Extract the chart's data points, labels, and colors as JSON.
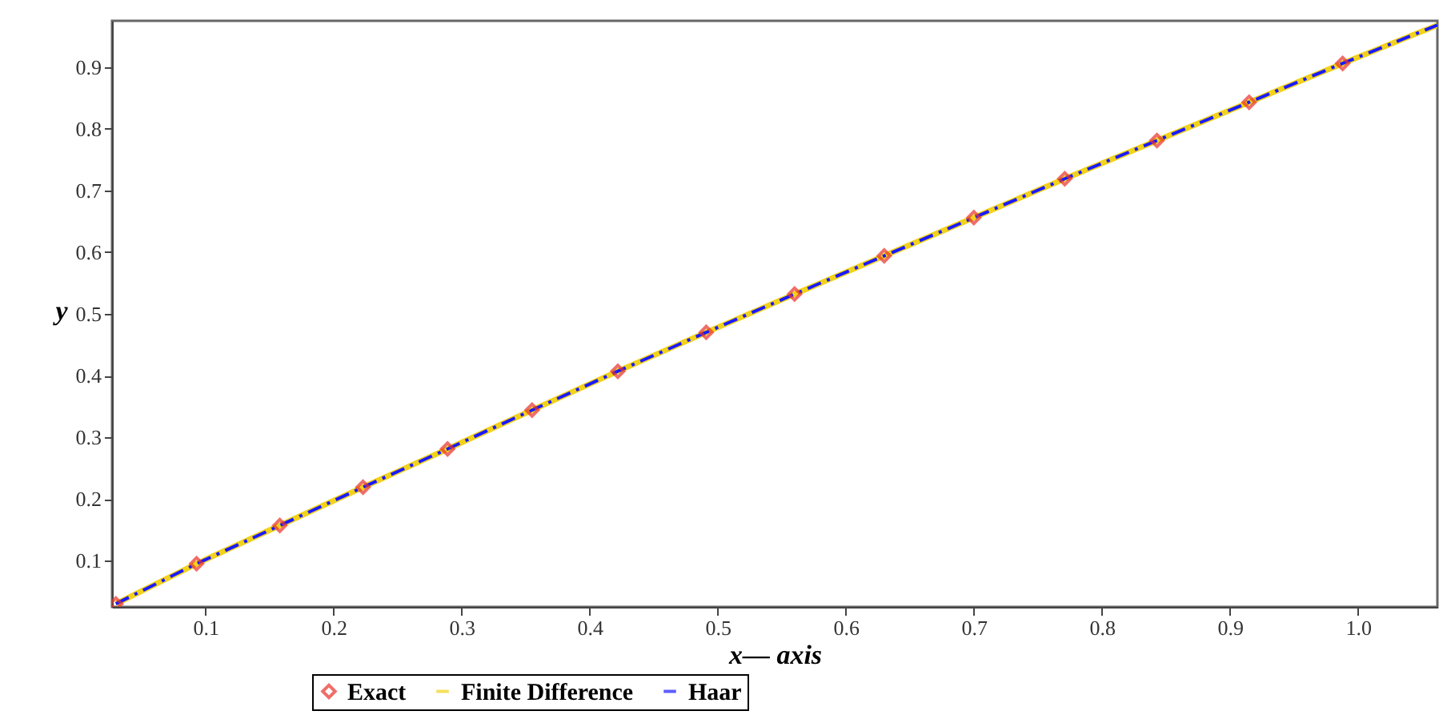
{
  "chart_data": {
    "type": "line",
    "xlabel": "x— axis",
    "ylabel": "y",
    "xlim": [
      0.027,
      1.062
    ],
    "ylim": [
      0.025,
      0.975
    ],
    "xticks": [
      0.1,
      0.2,
      0.3,
      0.4,
      0.5,
      0.6,
      0.7,
      0.8,
      0.9,
      {
        "value": 1.0,
        "label": "1.0"
      }
    ],
    "yticks": [
      0.1,
      0.2,
      0.3,
      0.4,
      0.5,
      0.6,
      0.7,
      0.8,
      0.9
    ],
    "grid": false,
    "legend": "bottom",
    "series": [
      {
        "name": "Exact",
        "type": "scatter",
        "marker": "diamond",
        "color": "#e8322b",
        "x": [
          0.03,
          0.093,
          0.158,
          0.223,
          0.289,
          0.355,
          0.422,
          0.491,
          0.56,
          0.63,
          0.7,
          0.771,
          0.843,
          0.915,
          0.988
        ],
        "values": [
          0.03,
          0.095,
          0.157,
          0.219,
          0.281,
          0.344,
          0.407,
          0.47,
          0.532,
          0.594,
          0.656,
          0.719,
          0.781,
          0.843,
          0.906
        ]
      },
      {
        "name": "Finite Difference",
        "type": "line",
        "line_style": "solid",
        "color": "#f2d21b",
        "x": [
          0.03,
          0.093,
          0.158,
          0.223,
          0.289,
          0.355,
          0.422,
          0.491,
          0.56,
          0.63,
          0.7,
          0.771,
          0.843,
          0.915,
          0.988,
          1.062
        ],
        "values": [
          0.03,
          0.095,
          0.157,
          0.219,
          0.281,
          0.344,
          0.407,
          0.47,
          0.532,
          0.594,
          0.656,
          0.719,
          0.781,
          0.843,
          0.906,
          0.968
        ]
      },
      {
        "name": "Haar",
        "type": "line",
        "line_style": "dashed",
        "color": "#1a1aff",
        "x": [
          0.03,
          0.093,
          0.158,
          0.223,
          0.289,
          0.355,
          0.422,
          0.491,
          0.56,
          0.63,
          0.7,
          0.771,
          0.843,
          0.915,
          0.988,
          1.062
        ],
        "values": [
          0.03,
          0.095,
          0.157,
          0.219,
          0.281,
          0.344,
          0.407,
          0.47,
          0.532,
          0.594,
          0.656,
          0.719,
          0.781,
          0.843,
          0.906,
          0.968
        ]
      }
    ]
  }
}
